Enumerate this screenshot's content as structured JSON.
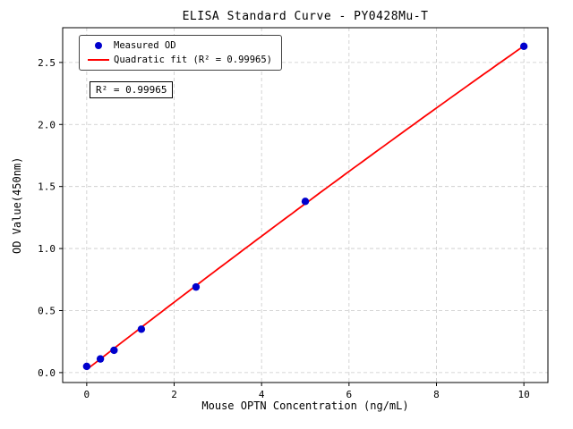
{
  "chart_data": {
    "type": "scatter",
    "title": "ELISA Standard Curve - PY0428Mu-T",
    "xlabel": "Mouse OPTN Concentration (ng/mL)",
    "ylabel": "OD Value(450nm)",
    "xlim": [
      -0.55,
      10.55
    ],
    "ylim": [
      -0.08,
      2.78
    ],
    "xticks": [
      0,
      2,
      4,
      6,
      8,
      10
    ],
    "xtick_labels": [
      "0",
      "2",
      "4",
      "6",
      "8",
      "10"
    ],
    "yticks": [
      0.0,
      0.5,
      1.0,
      1.5,
      2.0,
      2.5
    ],
    "ytick_labels": [
      "0.0",
      "0.5",
      "1.0",
      "1.5",
      "2.0",
      "2.5"
    ],
    "grid": true,
    "grid_style": "dashed",
    "legend_position": "upper-left",
    "annotation": "R² = 0.99965",
    "colors": {
      "points": "#0000cd",
      "fit_line": "#ff0000",
      "grid": "#c8c8c8",
      "axis": "#000000"
    },
    "series": [
      {
        "name": "Measured OD",
        "type": "scatter",
        "color": "#0000cd",
        "x": [
          0,
          0.3125,
          0.625,
          1.25,
          2.5,
          5,
          10
        ],
        "y": [
          0.05,
          0.11,
          0.18,
          0.35,
          0.69,
          1.38,
          2.63
        ]
      },
      {
        "name": "Quadratic fit (R² = 0.99965)",
        "type": "line",
        "fit": "quadratic",
        "color": "#ff0000",
        "r_squared": 0.99965
      }
    ]
  }
}
